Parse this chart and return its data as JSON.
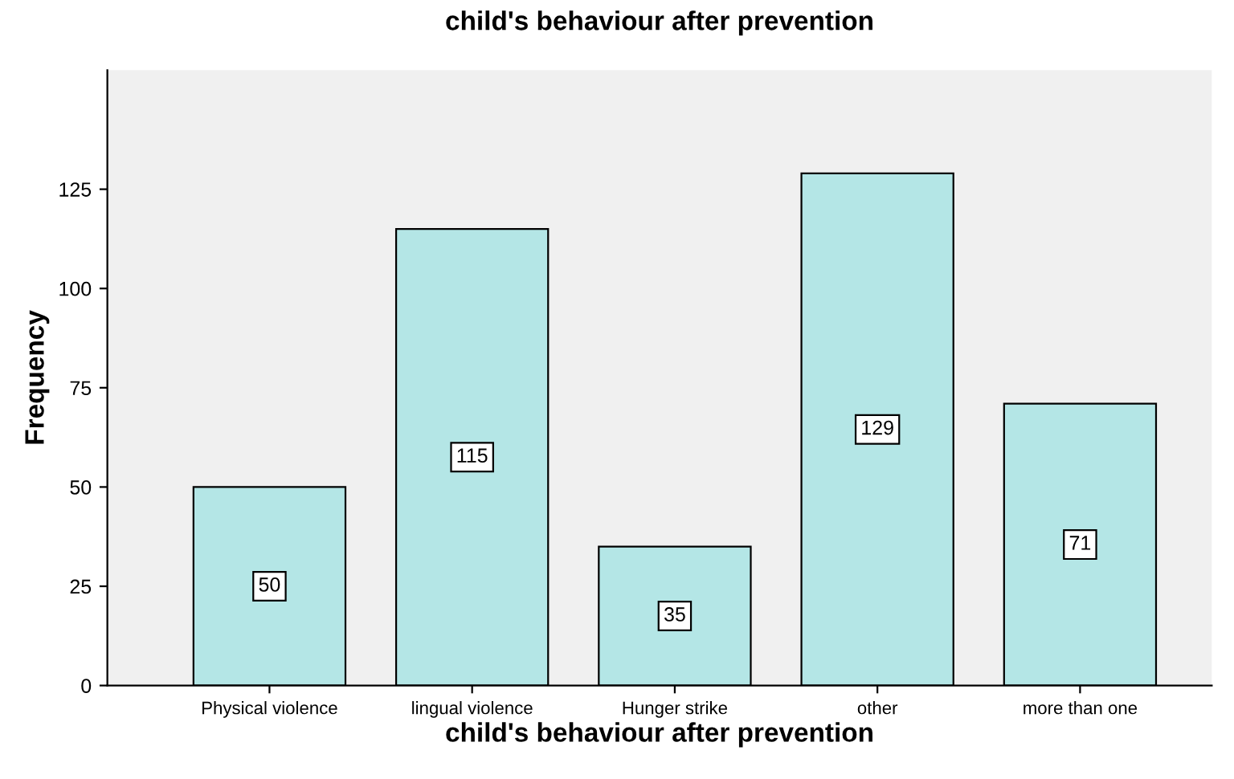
{
  "chart_data": {
    "type": "bar",
    "title": "child's behaviour after prevention",
    "xlabel": "child's behaviour after prevention",
    "ylabel": "Frequency",
    "categories": [
      "Physical violence",
      "lingual violence",
      "Hunger strike",
      "other",
      "more than one"
    ],
    "values": [
      50,
      115,
      35,
      129,
      71
    ],
    "color": "#b4e6e6",
    "ylim": [
      0,
      155
    ],
    "yticks": [
      0,
      25,
      50,
      75,
      100,
      125
    ],
    "grid": false,
    "data_labels": true
  }
}
